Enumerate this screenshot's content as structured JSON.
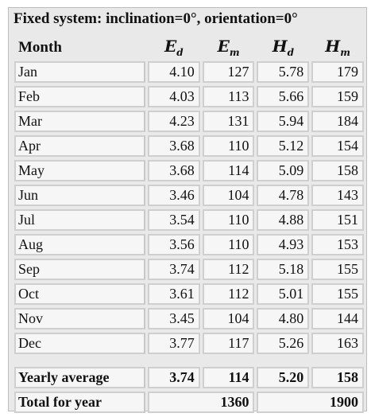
{
  "title": "Fixed system: inclination=0°, orientation=0°",
  "headers": {
    "month": "Month",
    "cols": [
      {
        "main": "E",
        "sub": "d"
      },
      {
        "main": "E",
        "sub": "m"
      },
      {
        "main": "H",
        "sub": "d"
      },
      {
        "main": "H",
        "sub": "m"
      }
    ]
  },
  "rows": [
    {
      "month": "Jan",
      "ed": "4.10",
      "em": "127",
      "hd": "5.78",
      "hm": "179"
    },
    {
      "month": "Feb",
      "ed": "4.03",
      "em": "113",
      "hd": "5.66",
      "hm": "159"
    },
    {
      "month": "Mar",
      "ed": "4.23",
      "em": "131",
      "hd": "5.94",
      "hm": "184"
    },
    {
      "month": "Apr",
      "ed": "3.68",
      "em": "110",
      "hd": "5.12",
      "hm": "154"
    },
    {
      "month": "May",
      "ed": "3.68",
      "em": "114",
      "hd": "5.09",
      "hm": "158"
    },
    {
      "month": "Jun",
      "ed": "3.46",
      "em": "104",
      "hd": "4.78",
      "hm": "143"
    },
    {
      "month": "Jul",
      "ed": "3.54",
      "em": "110",
      "hd": "4.88",
      "hm": "151"
    },
    {
      "month": "Aug",
      "ed": "3.56",
      "em": "110",
      "hd": "4.93",
      "hm": "153"
    },
    {
      "month": "Sep",
      "ed": "3.74",
      "em": "112",
      "hd": "5.18",
      "hm": "155"
    },
    {
      "month": "Oct",
      "ed": "3.61",
      "em": "112",
      "hd": "5.01",
      "hm": "155"
    },
    {
      "month": "Nov",
      "ed": "3.45",
      "em": "104",
      "hd": "4.80",
      "hm": "144"
    },
    {
      "month": "Dec",
      "ed": "3.77",
      "em": "117",
      "hd": "5.26",
      "hm": "163"
    }
  ],
  "yearly": {
    "label": "Yearly average",
    "ed": "3.74",
    "em": "114",
    "hd": "5.20",
    "hm": "158"
  },
  "total": {
    "label": "Total for year",
    "em": "1360",
    "hm": "1900"
  }
}
